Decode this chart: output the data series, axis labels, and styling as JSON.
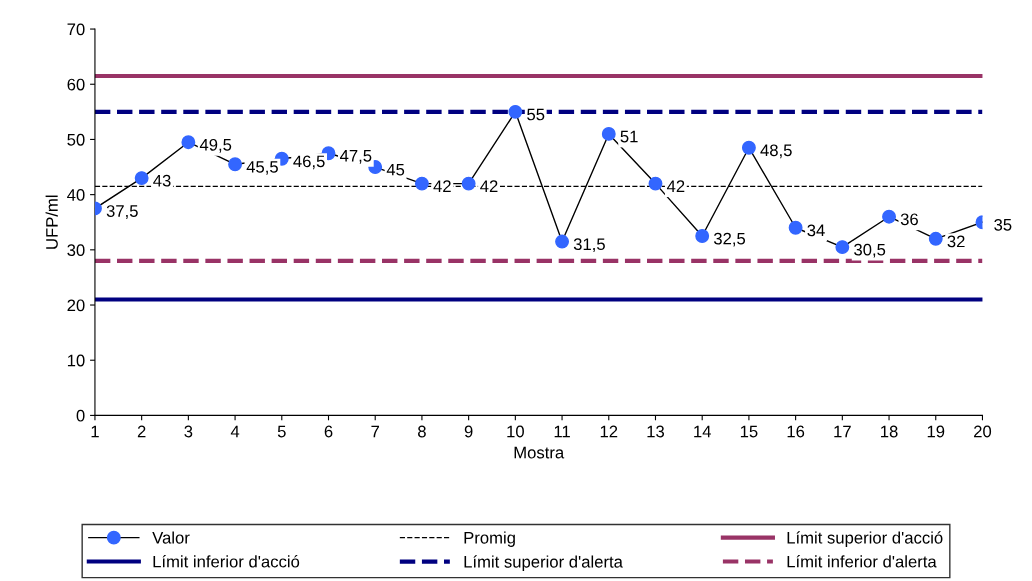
{
  "chart_data": {
    "type": "line",
    "xlabel": "Mostra",
    "ylabel": "UFP/ml",
    "x": [
      1,
      2,
      3,
      4,
      5,
      6,
      7,
      8,
      9,
      10,
      11,
      12,
      13,
      14,
      15,
      16,
      17,
      18,
      19,
      20
    ],
    "series": [
      {
        "name": "Valor",
        "color": "#3366ff",
        "values": [
          37.5,
          43,
          49.5,
          45.5,
          46.5,
          47.5,
          45,
          42,
          42,
          55,
          31.5,
          51,
          42,
          32.5,
          48.5,
          34,
          30.5,
          36,
          32,
          35
        ],
        "value_labels": [
          "37,5",
          "43",
          "49,5",
          "45,5",
          "46,5",
          "47,5",
          "45",
          "42",
          "42",
          "55",
          "31,5",
          "51",
          "42",
          "32,5",
          "48,5",
          "34",
          "30,5",
          "36",
          "32",
          "35"
        ]
      }
    ],
    "ref_lines": [
      {
        "axis": "y",
        "value": 41.5,
        "label": "Promig",
        "color": "#000000",
        "line_style": "dashed"
      },
      {
        "axis": "y",
        "value": 61.5,
        "label": "Límit superior d'acció",
        "color": "#993366",
        "line_style": "solid"
      },
      {
        "axis": "y",
        "value": 21,
        "label": "Límit inferior d'acció",
        "color": "#000080",
        "line_style": "solid"
      },
      {
        "axis": "y",
        "value": 55,
        "label": "Límit superior d'alerta",
        "color": "#000080",
        "line_style": "dashed"
      },
      {
        "axis": "y",
        "value": 28,
        "label": "Límit inferior d'alerta",
        "color": "#993366",
        "line_style": "dashed"
      }
    ],
    "xlim": [
      1,
      20
    ],
    "xticks": [
      1,
      2,
      3,
      4,
      5,
      6,
      7,
      8,
      9,
      10,
      11,
      12,
      13,
      14,
      15,
      16,
      17,
      18,
      19,
      20
    ],
    "ylim": [
      0,
      70
    ],
    "yticks": [
      0,
      10,
      20,
      30,
      40,
      50,
      60,
      70
    ],
    "grid": false,
    "legend": "bottom",
    "marker": "circle",
    "line_style": "solid"
  }
}
